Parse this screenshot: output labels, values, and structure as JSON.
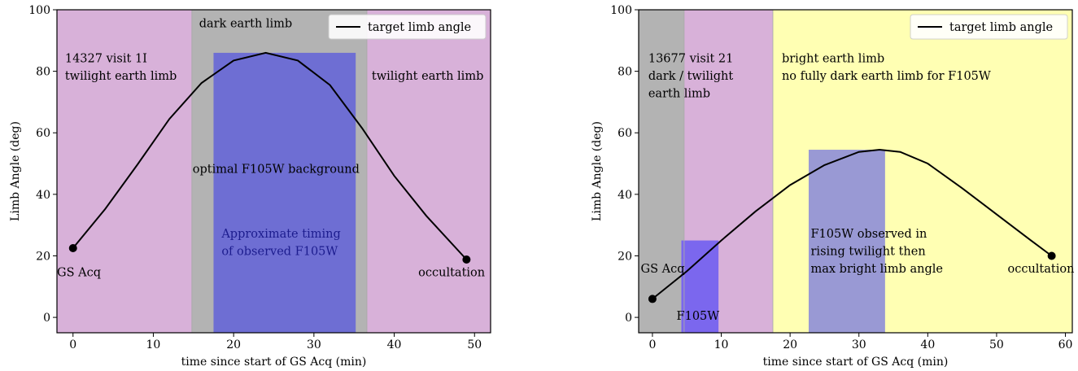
{
  "chart_data": [
    {
      "type": "line",
      "xlabel": "time since start of GS Acq (min)",
      "ylabel": "Limb Angle (deg)",
      "xlim": [
        -2,
        52
      ],
      "ylim": [
        -5,
        100
      ],
      "xticks": [
        0,
        10,
        20,
        30,
        40,
        50
      ],
      "yticks": [
        0,
        20,
        40,
        60,
        80,
        100
      ],
      "legend": {
        "label": "target limb angle",
        "placement": "top-right"
      },
      "series": [
        {
          "name": "target limb angle",
          "x": [
            0,
            4,
            8,
            12,
            16,
            20,
            24,
            28,
            32,
            36,
            40,
            44,
            49
          ],
          "y": [
            22.5,
            35.2,
            49.6,
            64.5,
            76.2,
            83.5,
            86,
            83.5,
            75.5,
            61.5,
            46,
            33,
            18.8
          ]
        }
      ],
      "markers": [
        {
          "x": 0,
          "y": 22.5,
          "label": "GS Acq"
        },
        {
          "x": 49,
          "y": 18.8,
          "label": "occultation"
        }
      ],
      "regions": [
        {
          "x0": -2,
          "x1": 14.8,
          "color": "#d8b1d9"
        },
        {
          "x0": 14.8,
          "x1": 36.6,
          "color": "#b3b3b3"
        },
        {
          "x0": 36.6,
          "x1": 52,
          "color": "#d8b1d9"
        },
        {
          "x0": 17.5,
          "x1": 35.2,
          "color": "#6e6ed3",
          "y1": 86
        }
      ],
      "annotations": [
        {
          "text": "14327 visit 1I",
          "x": -1,
          "y": 83
        },
        {
          "text": "twilight earth limb",
          "x": -1,
          "y": 77.3
        },
        {
          "text": "dark earth limb",
          "x": 15.7,
          "y": 94.3
        },
        {
          "text": "twilight earth limb",
          "x": 37.2,
          "y": 77.3
        },
        {
          "text": "optimal F105W background",
          "x": 14.9,
          "y": 47
        },
        {
          "text": "Approximate timing",
          "x": 18.5,
          "y": 26,
          "color": "#1c1c8e"
        },
        {
          "text": "of observed F105W",
          "x": 18.5,
          "y": 20.3,
          "color": "#1c1c8e"
        },
        {
          "text": "GS Acq",
          "x": -2,
          "y": 13.4
        },
        {
          "text": "occultation",
          "x": 43,
          "y": 13.4
        }
      ]
    },
    {
      "type": "line",
      "xlabel": "time since start of GS Acq (min)",
      "ylabel": "Limb Angle (deg)",
      "xlim": [
        -2,
        61
      ],
      "ylim": [
        -5,
        100
      ],
      "xticks": [
        0,
        10,
        20,
        30,
        40,
        50,
        60
      ],
      "yticks": [
        0,
        20,
        40,
        60,
        80,
        100
      ],
      "legend": {
        "label": "target limb angle",
        "placement": "top-right"
      },
      "series": [
        {
          "name": "target limb angle",
          "x": [
            0,
            5,
            10,
            15,
            20,
            25,
            30,
            33,
            36,
            40,
            45,
            50,
            55,
            58
          ],
          "y": [
            6,
            15,
            25,
            34.5,
            43,
            49.5,
            53.8,
            54.5,
            53.8,
            50,
            42,
            33.5,
            25,
            20
          ]
        }
      ],
      "markers": [
        {
          "x": 0,
          "y": 6,
          "label": "GS Acq"
        },
        {
          "x": 58,
          "y": 20,
          "label": "occultation"
        }
      ],
      "regions": [
        {
          "x0": -2,
          "x1": 4.6,
          "color": "#b3b3b3"
        },
        {
          "x0": 4.6,
          "x1": 17.5,
          "color": "#d8b1d9"
        },
        {
          "x0": 17.5,
          "x1": 61,
          "color": "#ffffb3"
        },
        {
          "x0": 4.2,
          "x1": 9.6,
          "color": "#7b67ee",
          "y1": 25
        },
        {
          "x0": 22.7,
          "x1": 33.8,
          "color": "#9999d4",
          "y1": 54.5
        }
      ],
      "annotations": [
        {
          "text": "13677 visit 21",
          "x": -0.6,
          "y": 83
        },
        {
          "text": "dark / twilight",
          "x": -0.6,
          "y": 77.3
        },
        {
          "text": "earth limb",
          "x": -0.6,
          "y": 71.6
        },
        {
          "text": "bright earth limb",
          "x": 18.8,
          "y": 83
        },
        {
          "text": "no fully dark earth limb for F105W",
          "x": 18.8,
          "y": 77.3
        },
        {
          "text": "F105W observed in",
          "x": 23,
          "y": 26
        },
        {
          "text": "rising twilight then",
          "x": 23,
          "y": 20.3
        },
        {
          "text": "max bright limb angle",
          "x": 23,
          "y": 14.6
        },
        {
          "text": "GS Acq",
          "x": -1.7,
          "y": 14.6
        },
        {
          "text": "F105W",
          "x": 3.5,
          "y": -0.8
        },
        {
          "text": "occultation",
          "x": 51.6,
          "y": 14.6
        }
      ]
    }
  ]
}
